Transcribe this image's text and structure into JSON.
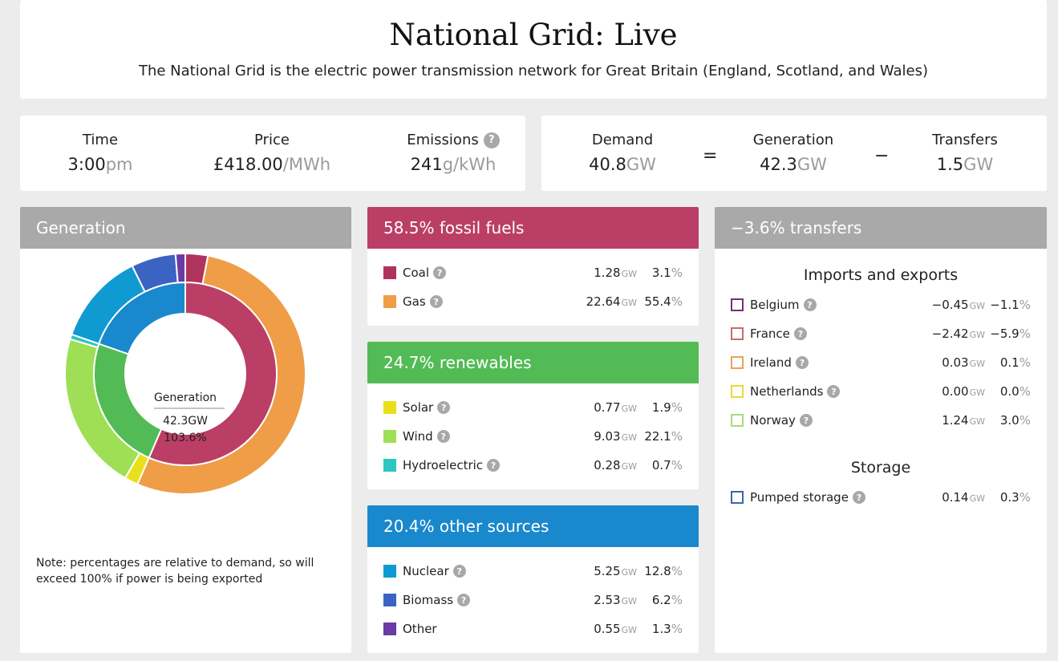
{
  "header": {
    "title": "National Grid: Live",
    "subtitle": "The National Grid is the electric power transmission network for Great Britain (England, Scotland, and Wales)"
  },
  "stats": {
    "time": {
      "label": "Time",
      "value": "3:00",
      "unit": "pm"
    },
    "price": {
      "label": "Price",
      "value": "£418.00",
      "unit": "/MWh"
    },
    "emissions": {
      "label": "Emissions",
      "value": "241",
      "unit": "g/kWh"
    },
    "demand": {
      "label": "Demand",
      "value": "40.8",
      "unit": "GW"
    },
    "generation": {
      "label": "Generation",
      "value": "42.3",
      "unit": "GW"
    },
    "transfers": {
      "label": "Transfers",
      "value": "1.5",
      "unit": "GW"
    },
    "equals": "=",
    "minus": "−"
  },
  "help_glyph": "?",
  "generation_panel": {
    "title": "Generation",
    "center_label": "Generation",
    "center_value": "42.3GW",
    "center_pct": "103.6%",
    "note": "Note: percentages are relative to demand, so will exceed 100% if power is being exported"
  },
  "groups": {
    "fossil": {
      "title": "58.5% fossil fuels",
      "color": "#bb3e66",
      "share": 58.5,
      "items": [
        {
          "name": "Coal",
          "gw": "1.28",
          "pct": "3.1",
          "color": "#b0335e",
          "value": 1.28
        },
        {
          "name": "Gas",
          "gw": "22.64",
          "pct": "55.4",
          "color": "#ef9d46",
          "value": 22.64
        }
      ]
    },
    "renew": {
      "title": "24.7% renewables",
      "color": "#52bb55",
      "share": 24.7,
      "items": [
        {
          "name": "Solar",
          "gw": "0.77",
          "pct": "1.9",
          "color": "#e8e01a",
          "value": 0.77
        },
        {
          "name": "Wind",
          "gw": "9.03",
          "pct": "22.1",
          "color": "#9edf55",
          "value": 9.03
        },
        {
          "name": "Hydroelectric",
          "gw": "0.28",
          "pct": "0.7",
          "color": "#2ec6c0",
          "value": 0.28
        }
      ]
    },
    "other": {
      "title": "20.4% other sources",
      "color": "#1a88cc",
      "share": 20.4,
      "items": [
        {
          "name": "Nuclear",
          "gw": "5.25",
          "pct": "12.8",
          "color": "#0f9ad2",
          "value": 5.25
        },
        {
          "name": "Biomass",
          "gw": "2.53",
          "pct": "6.2",
          "color": "#3b63c1",
          "value": 2.53
        },
        {
          "name": "Other",
          "gw": "0.55",
          "pct": "1.3",
          "color": "#6b3aa6",
          "value": 0.55
        }
      ]
    }
  },
  "transfers_panel": {
    "title": "−3.6% transfers",
    "imports_title": "Imports and exports",
    "imports": [
      {
        "name": "Belgium",
        "gw": "−0.45",
        "pct": "−1.1",
        "color": "#7a2d7a"
      },
      {
        "name": "France",
        "gw": "−2.42",
        "pct": "−5.9",
        "color": "#c86c6c"
      },
      {
        "name": "Ireland",
        "gw": "0.03",
        "pct": "0.1",
        "color": "#e8a35a"
      },
      {
        "name": "Netherlands",
        "gw": "0.00",
        "pct": "0.0",
        "color": "#e8d83a"
      },
      {
        "name": "Norway",
        "gw": "1.24",
        "pct": "3.0",
        "color": "#a6dc78"
      }
    ],
    "storage_title": "Storage",
    "storage": [
      {
        "name": "Pumped storage",
        "gw": "0.14",
        "pct": "0.3",
        "color": "#3a66b0"
      }
    ]
  },
  "units": {
    "gw": "GW",
    "pct": "%"
  }
}
